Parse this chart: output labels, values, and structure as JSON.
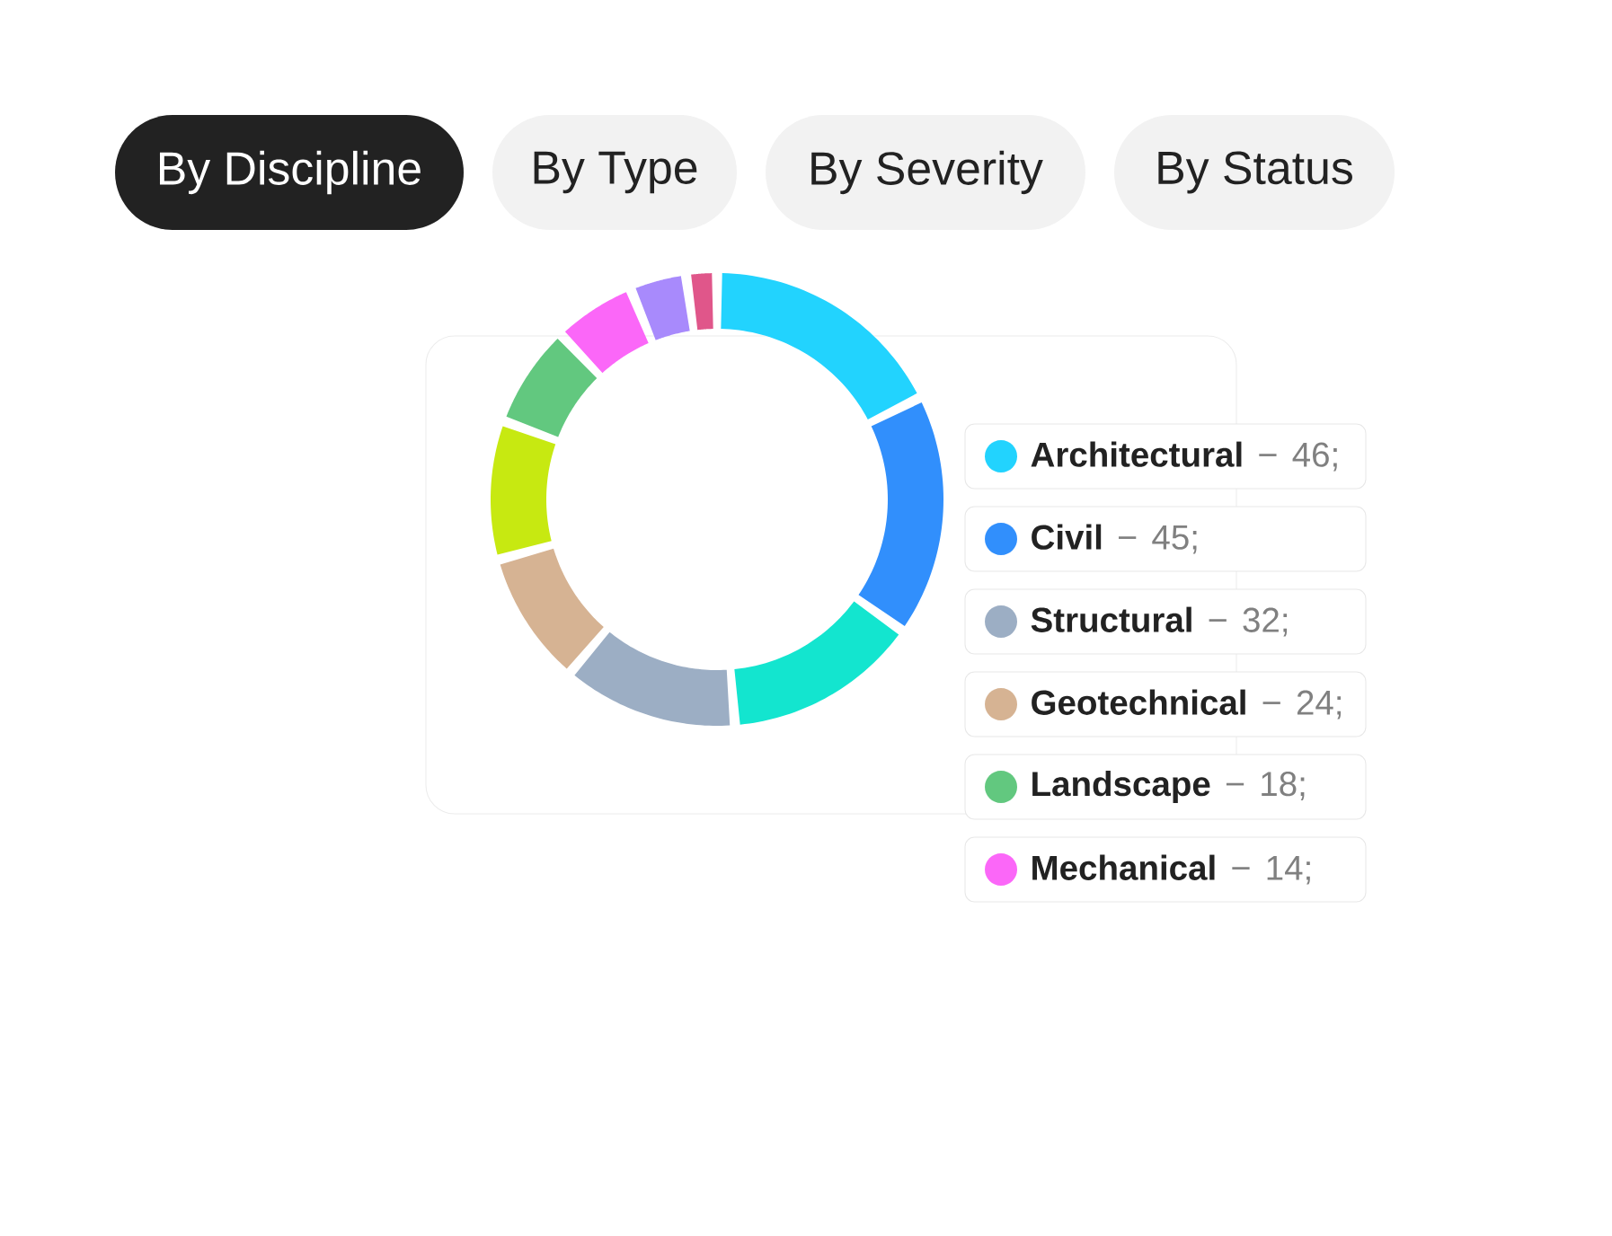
{
  "chart_data": {
    "type": "donut",
    "categories": [
      "Architectural",
      "Civil",
      null,
      "Structural",
      "Geotechnical",
      null,
      "Landscape",
      "Mechanical",
      null,
      null
    ],
    "values": [
      46,
      45,
      36,
      32,
      24,
      25,
      18,
      14,
      9,
      4
    ],
    "colors": [
      "#22d3fe",
      "#318ffc",
      "#13e5cf",
      "#9caec4",
      "#d6b393",
      "#c7e911",
      "#62c87f",
      "#fb67f8",
      "#a88afc",
      "#e0568a"
    ],
    "value_labels": [
      "46;",
      "45;",
      null,
      "32;",
      "24;",
      null,
      "18;",
      "14;",
      null,
      null
    ],
    "legend": "right",
    "annotations": [
      "By Discipline",
      "By Type",
      "By Severity",
      "By Status"
    ]
  }
}
